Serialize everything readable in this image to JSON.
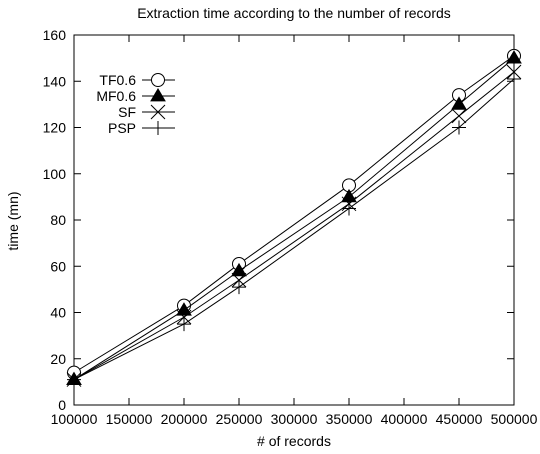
{
  "chart_data": {
    "type": "line",
    "title": "Extraction time according to the number of records",
    "xlabel": "# of records",
    "ylabel": "time (mn)",
    "xlim": [
      100000,
      500000
    ],
    "ylim": [
      0,
      160
    ],
    "x_ticks": [
      100000,
      150000,
      200000,
      250000,
      300000,
      350000,
      400000,
      450000,
      500000
    ],
    "y_ticks": [
      0,
      20,
      40,
      60,
      80,
      100,
      120,
      140,
      160
    ],
    "grid": false,
    "legend_position": "top-left",
    "x": [
      100000,
      200000,
      250000,
      350000,
      450000,
      500000
    ],
    "series": [
      {
        "name": "TF0.6",
        "marker": "circle",
        "values": [
          14,
          43,
          61,
          95,
          134,
          151
        ]
      },
      {
        "name": "MF0.6",
        "marker": "triangle",
        "values": [
          11,
          41,
          58,
          90,
          130,
          150
        ]
      },
      {
        "name": "SF",
        "marker": "x",
        "values": [
          11,
          38,
          54,
          87,
          125,
          144
        ]
      },
      {
        "name": "PSP",
        "marker": "plus",
        "values": [
          11,
          35,
          51,
          85,
          120,
          141
        ]
      }
    ]
  }
}
